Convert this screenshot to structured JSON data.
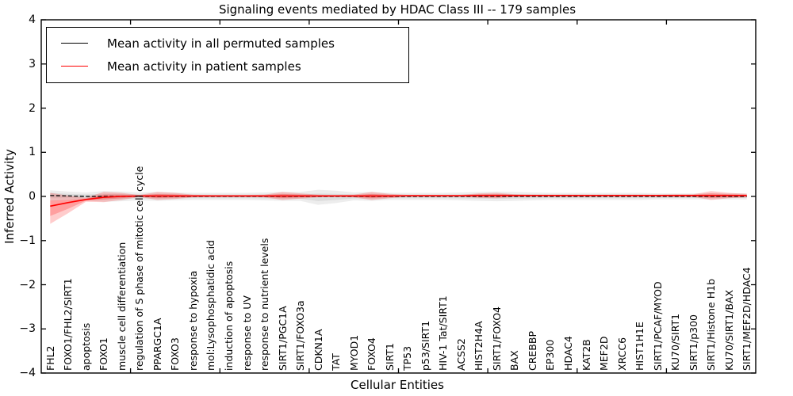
{
  "chart_data": {
    "type": "area",
    "title": "Signaling events mediated by HDAC Class III -- 179 samples",
    "xlabel": "Cellular Entities",
    "ylabel": "Inferred Activity",
    "ylim": [
      -4,
      4
    ],
    "xlim": [
      0,
      40
    ],
    "grid": false,
    "yticks": [
      4,
      3,
      2,
      1,
      0,
      -1,
      -2,
      -3,
      -4
    ],
    "ytick_labels": [
      "4",
      "3",
      "2",
      "1",
      "0",
      "−1",
      "−2",
      "−3",
      "−4"
    ],
    "xtick_positions": [
      5,
      10,
      15,
      20,
      25,
      30,
      35
    ],
    "categories": [
      "FHL2",
      "FOXO1/FHL2/SIRT1",
      "apoptosis",
      "FOXO1",
      "muscle cell differentiation",
      "regulation of S phase of mitotic cell cycle",
      "PPARGC1A",
      "FOXO3",
      "response to hypoxia",
      "mol:Lysophosphatidic acid",
      "induction of apoptosis",
      "response to UV",
      "response to nutrient levels",
      "SIRT1/PGC1A",
      "SIRT1/FOXO3a",
      "CDKN1A",
      "TAT",
      "MYOD1",
      "FOXO4",
      "SIRT1",
      "TP53",
      "p53/SIRT1",
      "HIV-1 Tat/SIRT1",
      "ACSS2",
      "HIST2H4A",
      "SIRT1/FOXO4",
      "BAX",
      "CREBBP",
      "EP300",
      "HDAC4",
      "KAT2B",
      "MEF2D",
      "XRCC6",
      "HIST1H1E",
      "SIRT1/PCAF/MYOD",
      "KU70/SIRT1",
      "SIRT1/p300",
      "SIRT1/Histone H1b",
      "KU70/SIRT1/BAX",
      "SIRT1/MEF2D/HDAC4"
    ],
    "legend": {
      "position": "upper left",
      "entries": [
        {
          "label": "Mean activity in all permuted samples",
          "color": "#000000"
        },
        {
          "label": "Mean activity in patient samples",
          "color": "#ff0000"
        }
      ]
    },
    "series": [
      {
        "name": "Mean activity in all permuted samples",
        "color": "#000000",
        "style": "dashed",
        "values": [
          0.02,
          0.01,
          0,
          0,
          0,
          0,
          0,
          0,
          0,
          0,
          0,
          0,
          0,
          0,
          0,
          0,
          0,
          0,
          0,
          0,
          0,
          0,
          0,
          0,
          0,
          0,
          0,
          0,
          0,
          0,
          0,
          0,
          0,
          0,
          0,
          0,
          0,
          0,
          0,
          0
        ]
      },
      {
        "name": "Mean activity in patient samples",
        "color": "#ff0000",
        "style": "solid",
        "values": [
          -0.22,
          -0.14,
          -0.07,
          -0.02,
          0,
          0.01,
          0.01,
          0.01,
          0.01,
          0.01,
          0.01,
          0.01,
          0.01,
          0.01,
          0.01,
          0.01,
          0.01,
          0.01,
          0.01,
          0.01,
          0.015,
          0.015,
          0.015,
          0.015,
          0.02,
          0.02,
          0.02,
          0.02,
          0.02,
          0.02,
          0.02,
          0.02,
          0.02,
          0.02,
          0.02,
          0.02,
          0.02,
          0.02,
          0.02,
          0.02
        ]
      }
    ],
    "bands": [
      {
        "name": "permuted-range",
        "color": "#999999",
        "outer_opacity": 0.18,
        "inner_opacity": 0.2,
        "upper": [
          0.14,
          0.11,
          0.09,
          0.12,
          0.11,
          0.09,
          0.1,
          0.09,
          0.08,
          0.08,
          0.08,
          0.08,
          0.09,
          0.1,
          0.1,
          0.15,
          0.13,
          0.09,
          0.1,
          0.08,
          0.08,
          0.08,
          0.08,
          0.09,
          0.1,
          0.11,
          0.1,
          0.09,
          0.08,
          0.08,
          0.08,
          0.08,
          0.08,
          0.08,
          0.07,
          0.07,
          0.07,
          0.07,
          0.07,
          0.07
        ],
        "lower": [
          -0.1,
          -0.09,
          -0.09,
          -0.12,
          -0.11,
          -0.09,
          -0.1,
          -0.09,
          -0.08,
          -0.08,
          -0.08,
          -0.08,
          -0.09,
          -0.1,
          -0.1,
          -0.19,
          -0.15,
          -0.09,
          -0.1,
          -0.08,
          -0.08,
          -0.08,
          -0.08,
          -0.09,
          -0.1,
          -0.11,
          -0.1,
          -0.09,
          -0.08,
          -0.08,
          -0.08,
          -0.08,
          -0.08,
          -0.08,
          -0.07,
          -0.07,
          -0.07,
          -0.07,
          -0.07,
          -0.07
        ]
      },
      {
        "name": "patient-range",
        "color": "#ff0000",
        "outer_opacity": 0.2,
        "inner_opacity": 0.22,
        "upper": [
          0.08,
          0.02,
          -0.03,
          0.1,
          0.08,
          0.03,
          0.1,
          0.08,
          0.04,
          0.03,
          0.03,
          0.03,
          0.04,
          0.1,
          0.07,
          0.04,
          0.03,
          0.04,
          0.1,
          0.06,
          0.035,
          0.035,
          0.035,
          0.035,
          0.07,
          0.08,
          0.05,
          0.04,
          0.04,
          0.04,
          0.04,
          0.04,
          0.04,
          0.04,
          0.04,
          0.05,
          0.05,
          0.12,
          0.08,
          0.06
        ],
        "lower": [
          -0.62,
          -0.38,
          -0.12,
          -0.13,
          -0.08,
          -0.01,
          -0.08,
          -0.06,
          -0.02,
          -0.01,
          -0.01,
          -0.01,
          -0.02,
          -0.08,
          -0.05,
          -0.02,
          -0.01,
          -0.02,
          -0.08,
          -0.04,
          -0.005,
          -0.005,
          -0.005,
          -0.005,
          -0.03,
          -0.04,
          -0.01,
          0,
          0,
          0,
          0,
          0,
          0,
          0,
          0,
          -0.01,
          -0.01,
          -0.08,
          -0.04,
          -0.02
        ]
      }
    ]
  }
}
